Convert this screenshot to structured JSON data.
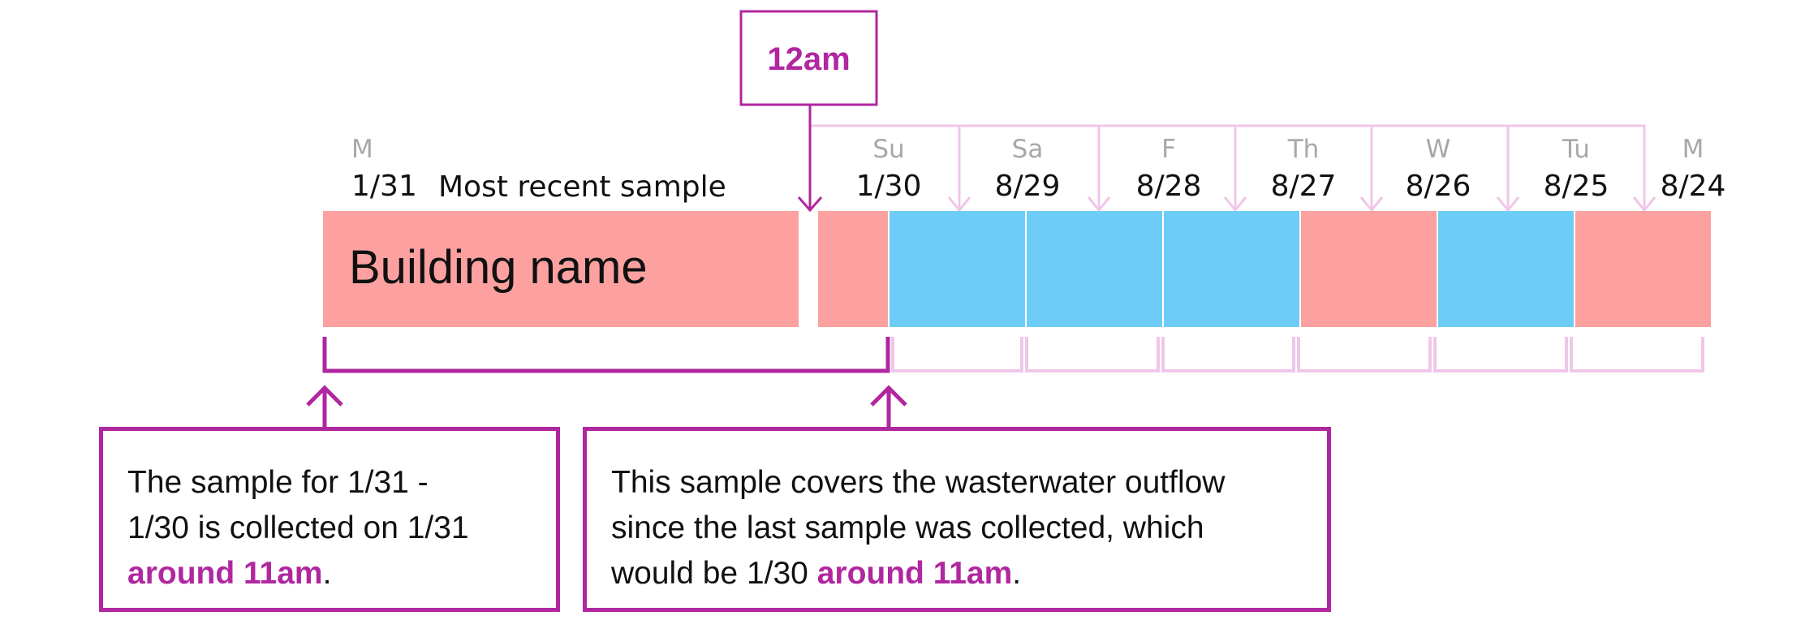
{
  "time_marker": {
    "label": "12am"
  },
  "building": {
    "name": "Building name",
    "most_recent_label": "Most recent sample"
  },
  "days": [
    {
      "abbr": "M",
      "date": "1/31"
    },
    {
      "abbr": "Su",
      "date": "1/30"
    },
    {
      "abbr": "Sa",
      "date": "8/29"
    },
    {
      "abbr": "F",
      "date": "8/28"
    },
    {
      "abbr": "Th",
      "date": "8/27"
    },
    {
      "abbr": "W",
      "date": "8/26"
    },
    {
      "abbr": "Tu",
      "date": "8/25"
    },
    {
      "abbr": "M",
      "date": "8/24"
    }
  ],
  "day_blocks": [
    [
      "red",
      "blue"
    ],
    [
      "blue",
      "blue"
    ],
    [
      "blue",
      "blue"
    ],
    [
      "blue",
      "red"
    ],
    [
      "red",
      "blue"
    ],
    [
      "blue",
      "red"
    ],
    [
      "red"
    ]
  ],
  "colors": {
    "red": "#fca0a0",
    "blue": "#6ecdf7",
    "accent": "#b0279f",
    "accent_light": "#f0c6ea",
    "day_abbr": "#a8a8a8",
    "text": "#111111"
  },
  "callouts": {
    "left": {
      "line1": "The sample for 1/31 -",
      "line2": "1/30 is collected on 1/31",
      "highlight": "around 11am",
      "tail": "."
    },
    "right": {
      "line1": "This sample covers the wasterwater outflow",
      "line2": "since the last sample was collected, which",
      "line3_prefix": "would be 1/30 ",
      "highlight": "around 11am",
      "tail": "."
    }
  }
}
